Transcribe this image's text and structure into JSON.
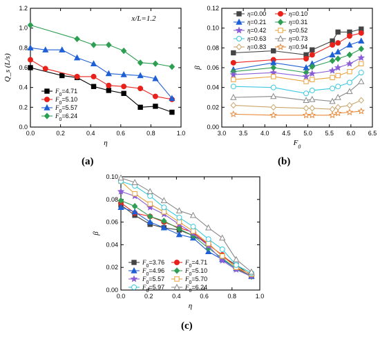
{
  "panel_labels": [
    "(a)",
    "(b)",
    "(c)"
  ],
  "chart_data": [
    {
      "type": "line",
      "annotation": "x/L=1.2",
      "xlabel": "η",
      "ylabel": "Q_s (L/s)",
      "xlim": [
        0.0,
        1.0
      ],
      "ylim": [
        0.0,
        1.2
      ],
      "xticks": [
        0.0,
        0.2,
        0.4,
        0.6,
        0.8,
        1.0
      ],
      "xtick_labels": [
        "0.0",
        "0.2",
        "0.4",
        "0.6",
        "0.8",
        "1.0"
      ],
      "yticks": [
        0.0,
        0.2,
        0.4,
        0.6,
        0.8,
        1.0,
        1.2
      ],
      "ytick_labels": [
        "0.0",
        "0.2",
        "0.4",
        "0.6",
        "0.8",
        "1.0",
        "1.2"
      ],
      "legend_position": "bottom-left",
      "series": [
        {
          "name": "F0=4.71",
          "label": "=4.71",
          "color": "#000000",
          "marker": "square",
          "x": [
            0.0,
            0.21,
            0.31,
            0.42,
            0.52,
            0.62,
            0.73,
            0.83,
            0.94
          ],
          "y": [
            0.6,
            0.52,
            0.5,
            0.41,
            0.37,
            0.34,
            0.2,
            0.21,
            0.15
          ]
        },
        {
          "name": "F0=5.10",
          "label": "=5.10",
          "color": "#e8221a",
          "marker": "circle",
          "x": [
            0.0,
            0.1,
            0.31,
            0.42,
            0.52,
            0.62,
            0.73,
            0.83,
            0.94
          ],
          "y": [
            0.68,
            0.59,
            0.51,
            0.51,
            0.42,
            0.41,
            0.39,
            0.31,
            0.28
          ]
        },
        {
          "name": "F0=5.57",
          "label": "=5.57",
          "color": "#1f5fd6",
          "marker": "triangle",
          "x": [
            0.0,
            0.1,
            0.21,
            0.31,
            0.42,
            0.52,
            0.62,
            0.73,
            0.83,
            0.94
          ],
          "y": [
            0.8,
            0.78,
            0.78,
            0.7,
            0.64,
            0.54,
            0.53,
            0.52,
            0.49,
            0.29
          ]
        },
        {
          "name": "F0=6.24",
          "label": "=6.24",
          "color": "#2e9e52",
          "marker": "diamond",
          "x": [
            0.0,
            0.31,
            0.42,
            0.52,
            0.62,
            0.73,
            0.83,
            0.94
          ],
          "y": [
            1.03,
            0.89,
            0.83,
            0.83,
            0.77,
            0.65,
            0.64,
            0.61
          ]
        }
      ]
    },
    {
      "type": "line",
      "xlabel": "F0",
      "ylabel": "β",
      "xlim": [
        3.0,
        6.5
      ],
      "ylim": [
        0.0,
        0.12
      ],
      "xticks": [
        3.0,
        3.5,
        4.0,
        4.5,
        5.0,
        5.5,
        6.0,
        6.5
      ],
      "xtick_labels": [
        "3.0",
        "3.5",
        "4.0",
        "4.5",
        "5.0",
        "5.5",
        "6.0",
        "6.5"
      ],
      "yticks": [
        0.0,
        0.02,
        0.04,
        0.06,
        0.08,
        0.1,
        0.12
      ],
      "ytick_labels": [
        "0.00",
        "0.02",
        "0.04",
        "0.06",
        "0.08",
        "0.10",
        "0.12"
      ],
      "legend_position": "top-left",
      "x": [
        3.27,
        4.2,
        4.96,
        5.1,
        5.57,
        5.7,
        5.97,
        6.24
      ],
      "series": [
        {
          "name": "η=0.00",
          "label": "=0.00",
          "color": "#444444",
          "marker": "square",
          "y": [
            0.075,
            0.077,
            0.073,
            0.078,
            0.087,
            0.096,
            0.096,
            0.099
          ]
        },
        {
          "name": "η=0.10",
          "label": "=0.10",
          "color": "#e8221a",
          "marker": "circle",
          "y": [
            0.065,
            0.068,
            0.069,
            0.073,
            0.083,
            0.085,
            0.092,
            0.095
          ]
        },
        {
          "name": "η=0.21",
          "label": "=0.21",
          "color": "#1f5fd6",
          "marker": "triangle",
          "y": [
            0.058,
            0.065,
            0.06,
            0.064,
            0.073,
            0.076,
            0.083,
            0.087
          ]
        },
        {
          "name": "η=0.31",
          "label": "=0.31",
          "color": "#2e9e52",
          "marker": "diamond",
          "y": [
            0.056,
            0.06,
            0.055,
            0.061,
            0.067,
            0.069,
            0.073,
            0.079
          ]
        },
        {
          "name": "η=0.42",
          "label": "=0.42",
          "color": "#8a5fd6",
          "marker": "star",
          "y": [
            0.053,
            0.055,
            0.051,
            0.054,
            0.057,
            0.06,
            0.064,
            0.07
          ]
        },
        {
          "name": "η=0.52",
          "label": "=0.52",
          "color": "#e8a23a",
          "marker": "square-open",
          "y": [
            0.048,
            0.051,
            0.046,
            0.048,
            0.05,
            0.052,
            0.056,
            0.064
          ]
        },
        {
          "name": "η=0.63",
          "label": "=0.63",
          "color": "#3ac9e0",
          "marker": "circle-open",
          "y": [
            0.041,
            0.04,
            0.034,
            0.037,
            0.039,
            0.041,
            0.045,
            0.055
          ]
        },
        {
          "name": "η=0.73",
          "label": "=0.73",
          "color": "#888888",
          "marker": "triangle-open",
          "y": [
            0.03,
            0.031,
            0.027,
            0.028,
            0.026,
            0.03,
            0.036,
            0.046
          ]
        },
        {
          "name": "η=0.83",
          "label": "=0.83",
          "color": "#c9a56b",
          "marker": "diamond-open",
          "y": [
            0.022,
            0.02,
            0.019,
            0.019,
            0.018,
            0.02,
            0.022,
            0.027
          ]
        },
        {
          "name": "η=0.94",
          "label": "=0.94",
          "color": "#e88a3a",
          "marker": "star-open",
          "y": [
            0.013,
            0.012,
            0.012,
            0.012,
            0.012,
            0.014,
            0.015,
            0.016
          ]
        }
      ]
    },
    {
      "type": "line",
      "xlabel": "η",
      "ylabel": "β",
      "xlim": [
        0.0,
        1.0
      ],
      "ylim": [
        0.0,
        0.1
      ],
      "xticks": [
        0.0,
        0.2,
        0.4,
        0.6,
        0.8,
        1.0
      ],
      "xtick_labels": [
        "0.0",
        "0.2",
        "0.4",
        "0.6",
        "0.8",
        "1.0"
      ],
      "yticks": [
        0.0,
        0.02,
        0.04,
        0.06,
        0.08,
        0.1
      ],
      "ytick_labels": [
        "0.00",
        "0.02",
        "0.04",
        "0.06",
        "0.08",
        "0.10"
      ],
      "legend_position": "bottom-left",
      "x": [
        0.0,
        0.1,
        0.21,
        0.31,
        0.42,
        0.52,
        0.63,
        0.73,
        0.83,
        0.94
      ],
      "series": [
        {
          "name": "F0=3.76",
          "label": "=3.76",
          "color": "#444444",
          "marker": "square",
          "y": [
            0.075,
            0.066,
            0.058,
            0.055,
            0.053,
            0.048,
            0.041,
            0.03,
            0.022,
            0.013
          ]
        },
        {
          "name": "F0=4.71",
          "label": "=4.71",
          "color": "#e8221a",
          "marker": "circle",
          "y": [
            0.077,
            0.068,
            0.065,
            0.06,
            0.055,
            0.051,
            0.04,
            0.031,
            0.02,
            0.012
          ]
        },
        {
          "name": "F0=4.96",
          "label": "=4.96",
          "color": "#1f5fd6",
          "marker": "triangle",
          "y": [
            0.073,
            0.069,
            0.06,
            0.055,
            0.049,
            0.046,
            0.034,
            0.027,
            0.019,
            0.012
          ]
        },
        {
          "name": "F0=5.10",
          "label": "=5.10",
          "color": "#2e9e52",
          "marker": "diamond",
          "y": [
            0.079,
            0.074,
            0.065,
            0.061,
            0.054,
            0.048,
            0.037,
            0.028,
            0.019,
            0.012
          ]
        },
        {
          "name": "F0=5.57",
          "label": "=5.57",
          "color": "#8a5fd6",
          "marker": "star",
          "y": [
            0.087,
            0.083,
            0.073,
            0.067,
            0.058,
            0.05,
            0.039,
            0.026,
            0.018,
            0.012
          ]
        },
        {
          "name": "F0=5.70",
          "label": "=5.70",
          "color": "#e8a23a",
          "marker": "square-open",
          "y": [
            0.096,
            0.085,
            0.076,
            0.069,
            0.06,
            0.052,
            0.041,
            0.03,
            0.02,
            0.014
          ]
        },
        {
          "name": "F0=5.97",
          "label": "=5.97",
          "color": "#3ac9e0",
          "marker": "circle-open",
          "y": [
            0.096,
            0.092,
            0.083,
            0.073,
            0.064,
            0.056,
            0.045,
            0.036,
            0.022,
            0.015
          ]
        },
        {
          "name": "F0=6.24",
          "label": "=6.24",
          "color": "#888888",
          "marker": "triangle-open",
          "y": [
            0.099,
            0.095,
            0.087,
            0.079,
            0.07,
            0.066,
            0.055,
            0.046,
            0.027,
            0.016
          ]
        }
      ]
    }
  ]
}
